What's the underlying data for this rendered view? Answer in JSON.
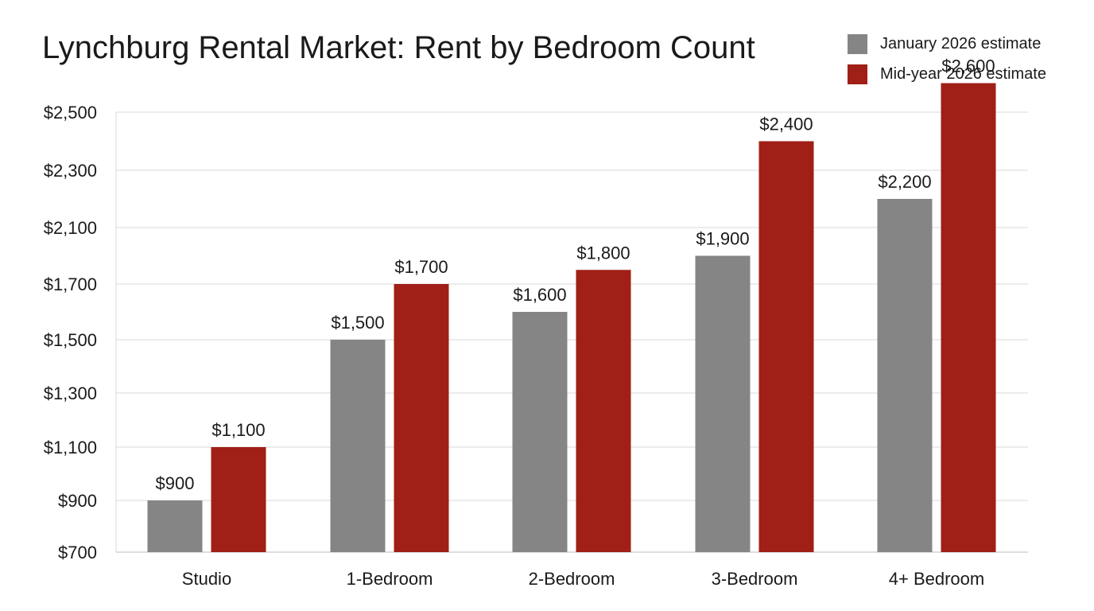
{
  "chart_data": {
    "type": "bar",
    "title": "Lynchburg Rental Market: Rent by Bedroom Count",
    "xlabel": "",
    "ylabel": "",
    "categories": [
      "Studio",
      "1-Bedroom",
      "2-Bedroom",
      "3-Bedroom",
      "4+ Bedroom"
    ],
    "series": [
      {
        "name": "January 2026 estimate",
        "color": "#858585",
        "values": [
          900,
          1500,
          1600,
          1900,
          2200
        ]
      },
      {
        "name": "Mid-year 2026 estimate",
        "color": "#a01f16",
        "values": [
          1100,
          1700,
          1800,
          2400,
          2600
        ]
      }
    ],
    "y_tick_labels": [
      "$700",
      "$900",
      "$1,100",
      "$1,300",
      "$1,500",
      "$1,700",
      "$2,100",
      "$2,300",
      "$2,500"
    ],
    "data_labels": [
      [
        "$900",
        "$1,500",
        "$1,600",
        "$1,900",
        "$2,200"
      ],
      [
        "$1,100",
        "$1,700",
        "$1,800",
        "$2,400",
        "$2,600"
      ]
    ],
    "axis_scale": "non-uniform (as printed)",
    "grid": true,
    "legend_position": "top-right"
  }
}
